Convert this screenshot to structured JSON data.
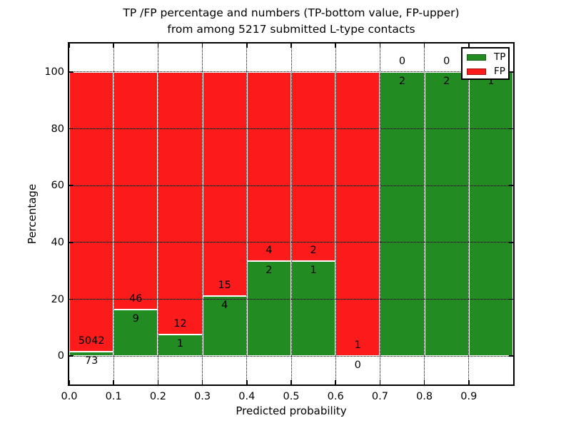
{
  "figure": {
    "title_line1": "TP /FP percentage and numbers (TP-bottom value, FP-upper)",
    "title_line2": "from among 5217 submitted L-type contacts"
  },
  "chart_data": {
    "type": "bar",
    "stacked": true,
    "title": "TP /FP percentage and numbers (TP-bottom value, FP-upper) from among 5217 submitted L-type contacts",
    "xlabel": "Predicted probability",
    "ylabel": "Percentage",
    "xlim": [
      0.0,
      1.0
    ],
    "ylim": [
      -10,
      110
    ],
    "x_ticks": [
      0.0,
      0.1,
      0.2,
      0.3,
      0.4,
      0.5,
      0.6,
      0.7,
      0.8,
      0.9
    ],
    "x_tick_labels": [
      "0.0",
      "0.1",
      "0.2",
      "0.3",
      "0.4",
      "0.5",
      "0.6",
      "0.7",
      "0.8",
      "0.9"
    ],
    "y_ticks": [
      0,
      20,
      40,
      60,
      80,
      100
    ],
    "y_tick_labels": [
      "0",
      "20",
      "40",
      "60",
      "80",
      "100"
    ],
    "grid": true,
    "bin_width": 0.1,
    "bin_starts": [
      0.0,
      0.1,
      0.2,
      0.3,
      0.4,
      0.5,
      0.6,
      0.7,
      0.8,
      0.9
    ],
    "series": [
      {
        "name": "TP",
        "color": "#228b22",
        "counts": [
          73,
          9,
          1,
          4,
          2,
          1,
          0,
          2,
          2,
          1
        ]
      },
      {
        "name": "FP",
        "color": "#fb1b1b",
        "counts": [
          5042,
          46,
          12,
          15,
          4,
          2,
          1,
          0,
          0,
          0
        ]
      }
    ],
    "tp_percent": [
      1.43,
      16.36,
      7.69,
      21.05,
      33.33,
      33.33,
      0,
      100,
      100,
      100
    ],
    "total_contacts": 5217,
    "bar_edge_color": "#ffffff",
    "grid_color": "#000000",
    "legend": {
      "position": "upper right",
      "entries": [
        {
          "label": "TP",
          "color": "#228b22"
        },
        {
          "label": "FP",
          "color": "#fb1b1b"
        }
      ]
    }
  }
}
